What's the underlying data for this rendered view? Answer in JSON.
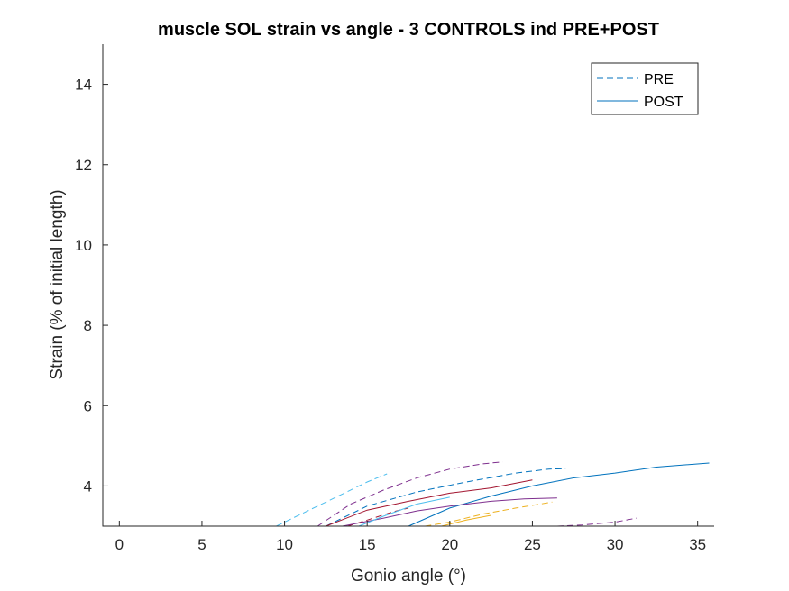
{
  "chart_data": {
    "type": "line",
    "title": "muscle SOL strain vs angle - 3 CONTROLS ind PRE+POST",
    "xlabel": "Gonio angle (°)",
    "ylabel": "Strain (% of initial length)",
    "xlim": [
      -1,
      36
    ],
    "ylim": [
      3,
      15
    ],
    "xticks": [
      0,
      5,
      10,
      15,
      20,
      25,
      30,
      35
    ],
    "yticks": [
      4,
      6,
      8,
      10,
      12,
      14
    ],
    "grid": false,
    "legend_position": "top-right",
    "legend": [
      {
        "label": "PRE",
        "style": "dashed",
        "color": "#0072BD"
      },
      {
        "label": "POST",
        "style": "solid",
        "color": "#0072BD"
      }
    ],
    "series": [
      {
        "style": "dashed",
        "color": "#4DBEEE",
        "x": [
          9.5,
          11,
          12.5,
          14,
          15,
          16.2
        ],
        "y": [
          3.0,
          3.3,
          3.6,
          3.9,
          4.1,
          4.3
        ]
      },
      {
        "style": "dashed",
        "color": "#7E2F8E",
        "x": [
          12,
          14,
          16,
          18,
          20,
          22,
          23.2
        ],
        "y": [
          3.0,
          3.55,
          3.9,
          4.2,
          4.42,
          4.55,
          4.6
        ]
      },
      {
        "style": "dashed",
        "color": "#0072BD",
        "x": [
          12.5,
          15,
          18,
          21,
          24,
          26,
          27
        ],
        "y": [
          3.0,
          3.5,
          3.85,
          4.1,
          4.32,
          4.42,
          4.43
        ]
      },
      {
        "style": "dashed",
        "color": "#EDB120",
        "x": [
          18.5,
          20,
          22,
          24,
          26.2
        ],
        "y": [
          3.0,
          3.1,
          3.3,
          3.45,
          3.6
        ]
      },
      {
        "style": "dashed",
        "color": "#7E2F8E",
        "x": [
          26.5,
          28,
          30,
          31.3
        ],
        "y": [
          3.0,
          3.03,
          3.1,
          3.2
        ]
      },
      {
        "style": "dashed",
        "color": "#A2142F",
        "x": [
          13.8,
          15,
          16.5,
          17.5
        ],
        "y": [
          3.0,
          3.15,
          3.35,
          3.45
        ]
      },
      {
        "style": "solid",
        "color": "#0072BD",
        "x": [
          17.5,
          20,
          22.5,
          25,
          27.5,
          30,
          32.5,
          35.7
        ],
        "y": [
          3.0,
          3.45,
          3.75,
          4.0,
          4.2,
          4.32,
          4.47,
          4.57
        ]
      },
      {
        "style": "solid",
        "color": "#A2142F",
        "x": [
          12.5,
          15,
          17.5,
          20,
          22.5,
          25
        ],
        "y": [
          3.0,
          3.4,
          3.62,
          3.82,
          3.95,
          4.15
        ]
      },
      {
        "style": "solid",
        "color": "#7E2F8E",
        "x": [
          13.5,
          16,
          18,
          20,
          22.5,
          24.5,
          26.5
        ],
        "y": [
          3.0,
          3.2,
          3.38,
          3.5,
          3.62,
          3.68,
          3.7
        ]
      },
      {
        "style": "solid",
        "color": "#EDB120",
        "x": [
          19.5,
          21,
          22.5
        ],
        "y": [
          3.0,
          3.15,
          3.27
        ]
      },
      {
        "style": "solid",
        "color": "#4DBEEE",
        "x": [
          14.5,
          16,
          18,
          20
        ],
        "y": [
          3.0,
          3.25,
          3.55,
          3.72
        ]
      }
    ]
  }
}
